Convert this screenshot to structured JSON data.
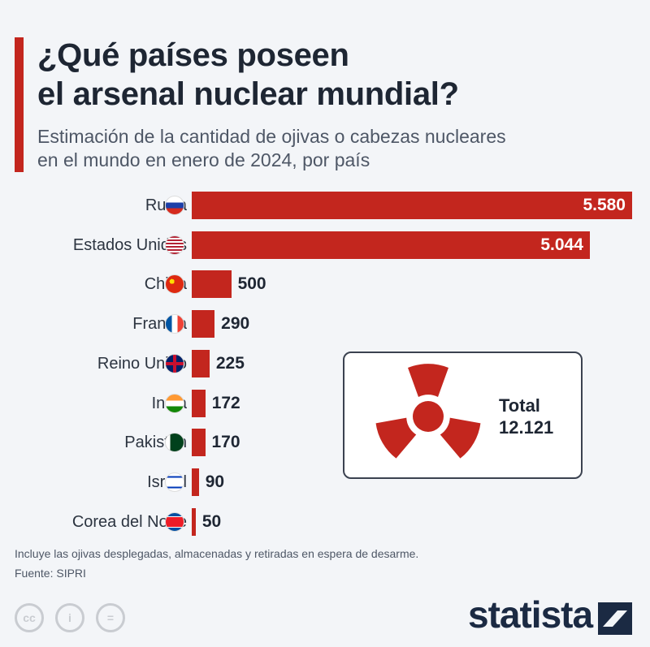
{
  "title_lines": [
    "¿Qué países poseen",
    "el arsenal nuclear mundial?"
  ],
  "subtitle_lines": [
    "Estimación de la cantidad de ojivas o cabezas nucleares",
    "en el mundo en enero de 2024, por país"
  ],
  "chart_data": {
    "type": "bar",
    "orientation": "horizontal",
    "title": "¿Qué países poseen el arsenal nuclear mundial?",
    "categories": [
      "Rusia",
      "Estados Unidos",
      "China",
      "Francia",
      "Reino Unido",
      "India",
      "Pakistán",
      "Israel",
      "Corea del Norte"
    ],
    "values": [
      5580,
      5044,
      500,
      290,
      225,
      172,
      170,
      90,
      50
    ],
    "value_labels": [
      "5.580",
      "5.044",
      "500",
      "290",
      "225",
      "172",
      "170",
      "90",
      "50"
    ],
    "color": "#c3261e",
    "xlim": [
      0,
      5580
    ]
  },
  "flags": [
    "russia-flag-icon",
    "usa-flag-icon",
    "china-flag-icon",
    "france-flag-icon",
    "uk-flag-icon",
    "india-flag-icon",
    "pakistan-flag-icon",
    "israel-flag-icon",
    "north-korea-flag-icon"
  ],
  "total": {
    "label": "Total",
    "value": "12.121"
  },
  "footer": {
    "note": "Incluye las ojivas desplegadas, almacenadas y retiradas en espera de desarme.",
    "source": "Fuente: SIPRI",
    "cc": [
      "cc",
      "i",
      "="
    ],
    "brand": "statista"
  }
}
